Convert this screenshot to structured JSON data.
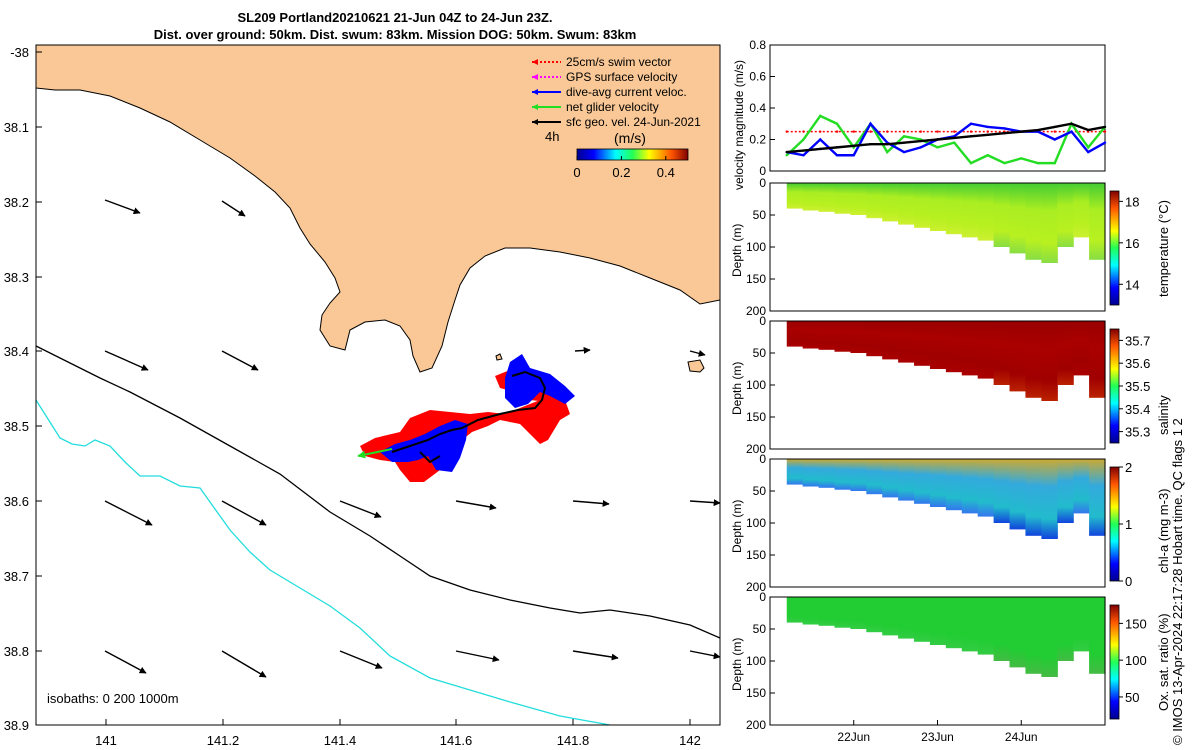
{
  "header": {
    "title_line1": "SL209 Portland20210621 21-Jun 04Z to 24-Jun 23Z.",
    "title_line2": "Dist. over ground: 50km. Dist. swum: 83km. Mission DOG: 50km. Swum: 83km"
  },
  "credit": "© IMOS 13-Apr-2024 22:17:28 Hobart time. QC flags 1  2",
  "colors": {
    "land": "#f9c896",
    "isobath_0": "#000000",
    "isobath_200": "#000000",
    "isobath_1000": "#22dddd",
    "glider_red": "#ff0000",
    "glider_blue": "#0000ff",
    "net_velocity": "#22dd22",
    "velocity_black": "#000000"
  },
  "map": {
    "isobaths_label": "isobaths: 0   200  1000m",
    "legend": [
      {
        "label": "25cm/s swim vector",
        "color": "#ff0000",
        "style": "dotted"
      },
      {
        "label": "GPS surface velocity",
        "color": "#ff00ff",
        "style": "dotted"
      },
      {
        "label": "dive-avg current veloc.",
        "color": "#0000ff",
        "style": "solid"
      },
      {
        "label": "net glider velocity",
        "color": "#22dd22",
        "style": "solid"
      },
      {
        "label": "sfc geo. vel. 24-Jun-2021",
        "color": "#000000",
        "style": "solid"
      }
    ],
    "arrow_scale_label": "4h",
    "colorbar": {
      "label": "(m/s)",
      "ticks": [
        "0",
        "0.2",
        "0.4"
      ],
      "range": [
        0,
        0.5
      ]
    },
    "x_ticks": [
      "141",
      "141.2",
      "141.4",
      "141.6",
      "141.8",
      "142"
    ],
    "y_ticks": [
      "-38",
      "38.1",
      "38.2",
      "38.3",
      "38.4",
      "38.5",
      "38.6",
      "38.7",
      "38.8",
      "38.9"
    ]
  },
  "chart_data": [
    {
      "type": "line",
      "ylabel": "velocity magnitude (m/s)",
      "ylim": [
        0,
        0.8
      ],
      "y_ticks": [
        "0",
        "0.2",
        "0.4",
        "0.6",
        "0.8"
      ],
      "x": [
        21.2,
        21.4,
        21.6,
        21.8,
        22.0,
        22.2,
        22.4,
        22.6,
        22.8,
        23.0,
        23.2,
        23.4,
        23.6,
        23.8,
        24.0,
        24.2,
        24.4,
        24.6,
        24.8,
        25.0
      ],
      "series": [
        {
          "name": "25cm/s swim vector",
          "color": "#ff0000",
          "values": [
            0.25,
            0.25,
            0.25,
            0.25,
            0.25,
            0.25,
            0.25,
            0.25,
            0.25,
            0.25,
            0.25,
            0.25,
            0.25,
            0.25,
            0.25,
            0.25,
            0.25,
            0.25,
            0.25,
            0.25
          ]
        },
        {
          "name": "net glider velocity",
          "color": "#22dd22",
          "values": [
            0.1,
            0.2,
            0.35,
            0.3,
            0.15,
            0.3,
            0.12,
            0.22,
            0.2,
            0.15,
            0.18,
            0.05,
            0.1,
            0.05,
            0.08,
            0.05,
            0.05,
            0.3,
            0.15,
            0.28
          ]
        },
        {
          "name": "dive-avg current veloc.",
          "color": "#0000ff",
          "values": [
            0.12,
            0.1,
            0.2,
            0.1,
            0.1,
            0.3,
            0.18,
            0.12,
            0.15,
            0.2,
            0.22,
            0.3,
            0.28,
            0.27,
            0.25,
            0.25,
            0.2,
            0.25,
            0.12,
            0.18
          ]
        },
        {
          "name": "sfc geo. vel. 24-Jun-2021",
          "color": "#000000",
          "values": [
            0.12,
            0.13,
            0.14,
            0.15,
            0.16,
            0.17,
            0.17,
            0.18,
            0.19,
            0.2,
            0.21,
            0.22,
            0.23,
            0.24,
            0.25,
            0.26,
            0.28,
            0.3,
            0.26,
            0.28
          ]
        }
      ]
    },
    {
      "type": "heatmap",
      "ylabel": "Depth (m)",
      "ylim": [
        0,
        200
      ],
      "colorbar_label": "temperature (°C)",
      "colorbar_ticks": [
        "14",
        "16",
        "18"
      ],
      "colorbar_range": [
        13,
        18.5
      ],
      "x_range": [
        21.2,
        25.0
      ],
      "bottom_depth": [
        40,
        43,
        45,
        48,
        50,
        55,
        60,
        65,
        70,
        75,
        80,
        85,
        90,
        100,
        110,
        120,
        125,
        100,
        85,
        120
      ]
    },
    {
      "type": "heatmap",
      "ylabel": "Depth (m)",
      "ylim": [
        0,
        200
      ],
      "colorbar_label": "salinity",
      "colorbar_ticks": [
        "35.3",
        "35.4",
        "35.5",
        "35.6",
        "35.7"
      ],
      "colorbar_range": [
        35.25,
        35.75
      ],
      "x_range": [
        21.2,
        25.0
      ],
      "bottom_depth": [
        40,
        43,
        45,
        48,
        50,
        55,
        60,
        65,
        70,
        75,
        80,
        85,
        90,
        100,
        110,
        120,
        125,
        100,
        85,
        120
      ]
    },
    {
      "type": "heatmap",
      "ylabel": "Depth (m)",
      "ylim": [
        0,
        200
      ],
      "colorbar_label": "chl-a (mg m-3)",
      "colorbar_ticks": [
        "0",
        "1",
        "2"
      ],
      "colorbar_range": [
        0,
        2
      ],
      "x_range": [
        21.2,
        25.0
      ],
      "bottom_depth": [
        40,
        43,
        45,
        48,
        50,
        55,
        60,
        65,
        70,
        75,
        80,
        85,
        90,
        100,
        110,
        120,
        125,
        100,
        85,
        120
      ]
    },
    {
      "type": "heatmap",
      "ylabel": "Depth (m)",
      "ylim": [
        0,
        200
      ],
      "colorbar_label": "Ox. sat. ratio (%)",
      "colorbar_ticks": [
        "50",
        "100",
        "150"
      ],
      "colorbar_range": [
        20,
        175
      ],
      "x_range": [
        21.2,
        25.0
      ],
      "bottom_depth": [
        40,
        43,
        45,
        48,
        50,
        55,
        60,
        65,
        70,
        75,
        80,
        85,
        90,
        100,
        110,
        120,
        125,
        100,
        85,
        120
      ],
      "x_ticks": [
        "22Jun",
        "23Jun",
        "24Jun"
      ]
    }
  ]
}
